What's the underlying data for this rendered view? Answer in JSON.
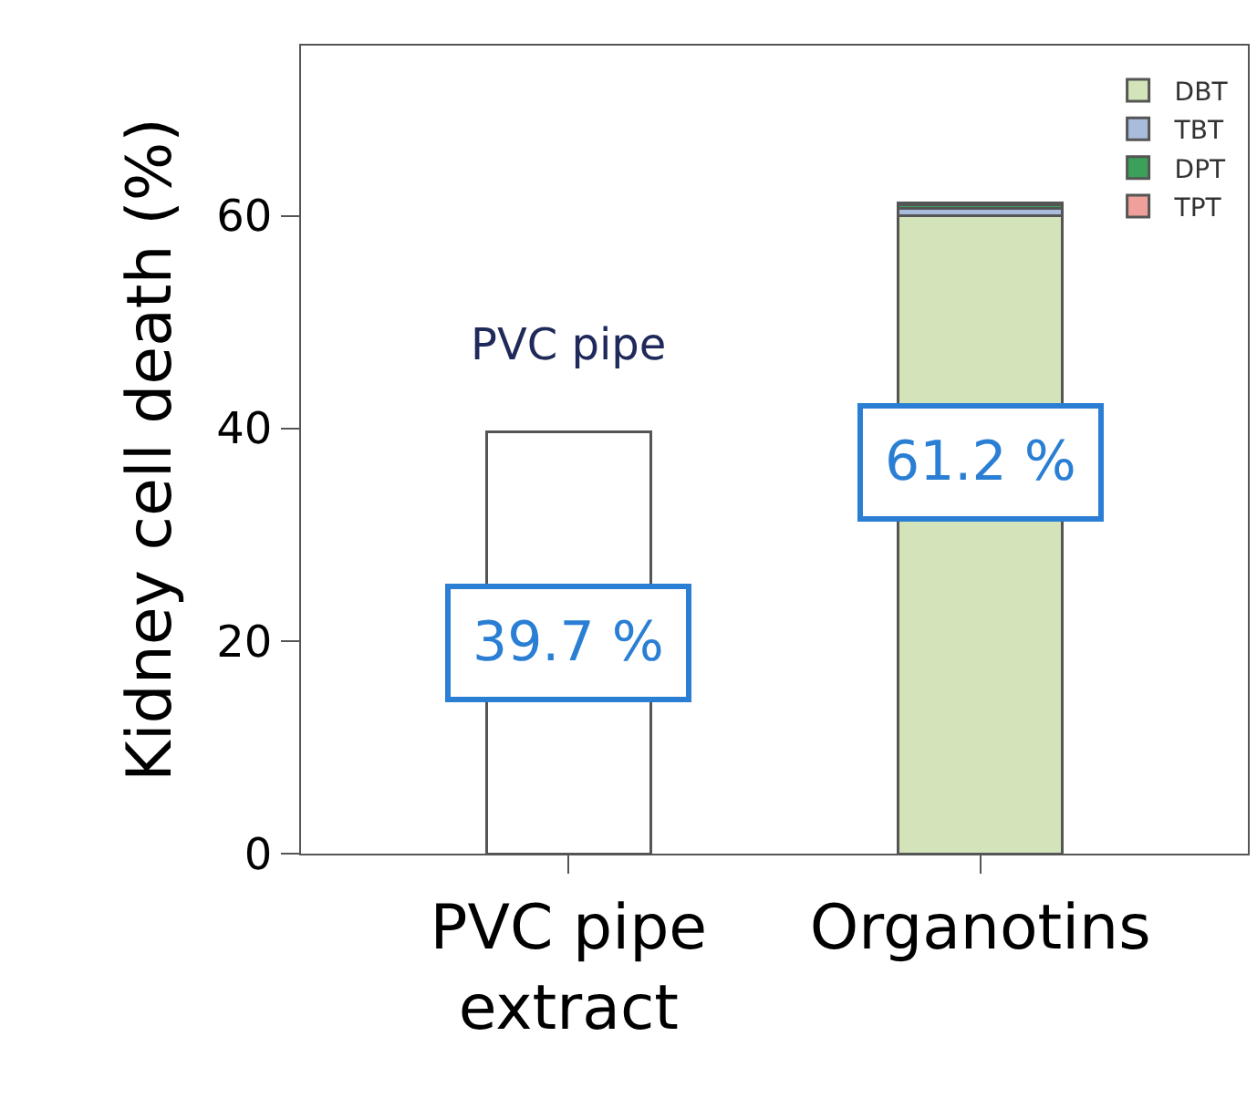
{
  "chart_data": {
    "type": "bar",
    "stacked": true,
    "ylabel": "Kidney cell death (%)",
    "categories": [
      "PVC pipe\nextract",
      "Organotins"
    ],
    "series": [
      {
        "color": "#ffffff",
        "values": [
          39.7,
          null
        ],
        "value_labels": [
          "39.7 %",
          null
        ]
      },
      {
        "name": "DBT",
        "color": "#d3e4bb",
        "values": [
          null,
          60.0
        ]
      },
      {
        "name": "TBT",
        "color": "#a9bcdc",
        "values": [
          null,
          0.7
        ]
      },
      {
        "name": "DPT",
        "color": "#3aa05a",
        "values": [
          null,
          0.3
        ]
      },
      {
        "name": "TPT",
        "color": "#f0a09a",
        "values": [
          null,
          0.2
        ]
      }
    ],
    "totals": [
      null,
      "61.2 %"
    ],
    "ylim": [
      0,
      76
    ],
    "yticks": [
      0,
      20,
      40,
      60
    ],
    "legend": "top right",
    "annotations": [
      "PVC pipe"
    ]
  }
}
